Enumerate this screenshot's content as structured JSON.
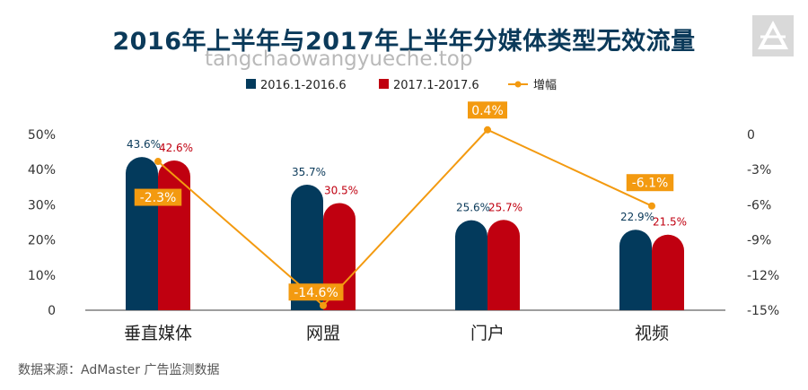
{
  "chart_data": {
    "type": "bar",
    "title": "2016年上半年与2017年上半年分媒体类型无效流量",
    "categories": [
      "垂直媒体",
      "网盟",
      "门户",
      "视频"
    ],
    "series": [
      {
        "name": "2016.1-2016.6",
        "type": "bar",
        "axis": "left",
        "color": "#033a5c",
        "values": [
          43.6,
          35.7,
          25.6,
          22.9
        ],
        "labels": [
          "43.6%",
          "35.7%",
          "25.6%",
          "22.9%"
        ]
      },
      {
        "name": "2017.1-2017.6",
        "type": "bar",
        "axis": "left",
        "color": "#c00010",
        "values": [
          42.6,
          30.5,
          25.7,
          21.5
        ],
        "labels": [
          "42.6%",
          "30.5%",
          "25.7%",
          "21.5%"
        ]
      },
      {
        "name": "增幅",
        "type": "line",
        "axis": "right",
        "color": "#f39a10",
        "values": [
          -2.3,
          -14.6,
          0.4,
          -6.1
        ],
        "labels": [
          "-2.3%",
          "-14.6%",
          "0.4%",
          "-6.1%"
        ]
      }
    ],
    "y_left": {
      "range": [
        0,
        50
      ],
      "ticks": [
        0,
        10,
        20,
        30,
        40,
        50
      ],
      "tick_labels": [
        "0",
        "10%",
        "20%",
        "30%",
        "40%",
        "50%"
      ]
    },
    "y_right": {
      "range": [
        -15,
        0
      ],
      "ticks": [
        0,
        -3,
        -6,
        -9,
        -12,
        -15
      ],
      "tick_labels": [
        "0",
        "-3%",
        "-6%",
        "-9%",
        "-12%",
        "-15%"
      ]
    },
    "legend_position": "top",
    "grid": false
  },
  "watermark": "tangchaowangyueche.top",
  "source": "数据来源：AdMaster 广告监测数据",
  "logo_icon": "triangle-logo-icon"
}
